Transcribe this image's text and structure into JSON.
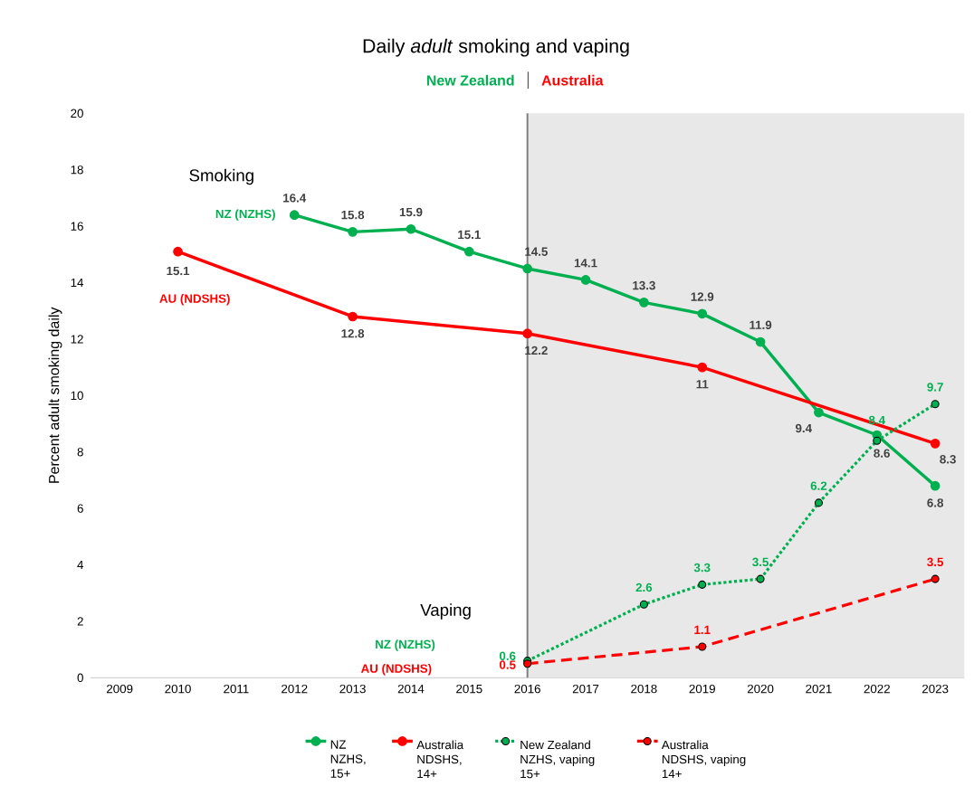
{
  "chart_data": {
    "type": "line",
    "title": "Daily *adult* smoking and vaping",
    "ylabel": "Percent adult smoking daily",
    "categories": [
      "2009",
      "2010",
      "2011",
      "2012",
      "2013",
      "2014",
      "2015",
      "2016",
      "2017",
      "2018",
      "2019",
      "2020",
      "2021",
      "2022",
      "2023"
    ],
    "ylim": [
      0,
      20
    ],
    "yticks": [
      0,
      2,
      4,
      6,
      8,
      10,
      12,
      14,
      16,
      18,
      20
    ],
    "legend": "bottom",
    "marker": "circle",
    "data_labels": true,
    "series": [
      {
        "name": "NZ NZHS, 15+",
        "color": "#00b050",
        "line_style": "solid",
        "values": [
          null,
          null,
          null,
          16.4,
          15.8,
          15.9,
          15.1,
          14.5,
          14.1,
          13.3,
          12.9,
          11.9,
          9.4,
          8.6,
          6.8
        ]
      },
      {
        "name": "Australia NDSHS, 14+",
        "color": "#ff0000",
        "line_style": "solid",
        "values": [
          null,
          15.1,
          null,
          null,
          12.8,
          null,
          null,
          12.2,
          null,
          null,
          11,
          null,
          null,
          null,
          8.3
        ]
      },
      {
        "name": "New Zealand NZHS, vaping 15+",
        "color": "#00b050",
        "line_style": "dotted",
        "values": [
          null,
          null,
          null,
          null,
          null,
          null,
          null,
          0.6,
          null,
          2.6,
          3.3,
          3.5,
          6.2,
          8.4,
          9.7
        ]
      },
      {
        "name": "Australia NDSHS, vaping 14+",
        "color": "#ff0000",
        "line_style": "dashed",
        "values": [
          null,
          null,
          null,
          null,
          null,
          null,
          null,
          0.5,
          null,
          null,
          1.1,
          null,
          null,
          null,
          3.5
        ]
      }
    ],
    "bands": [
      {
        "axis": "x",
        "from": "2016",
        "to": "2023",
        "color": "#e8e8e8"
      }
    ],
    "ref_lines": [
      {
        "axis": "x",
        "value": "2016",
        "color": "#7f7f7f"
      }
    ],
    "annotations": [
      "Smoking",
      "Vaping",
      "New Zealand",
      "Australia",
      {
        "text": "NZ (NZHS)",
        "x": "2012",
        "y": 16.4
      },
      "AU (NDSHS)",
      "NZ (NZHS)",
      "AU (NDSHS)"
    ]
  }
}
